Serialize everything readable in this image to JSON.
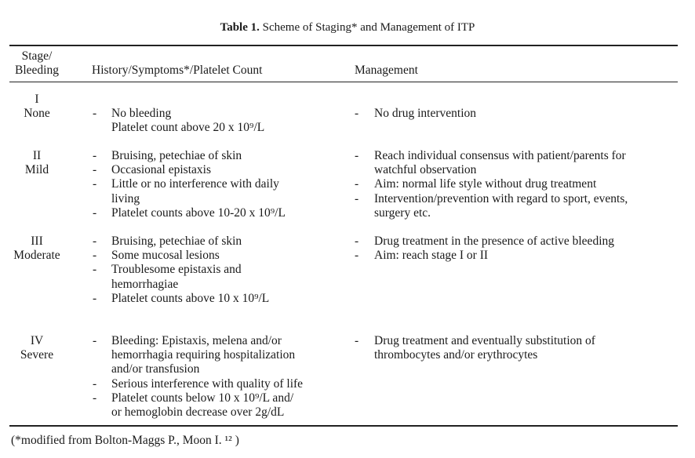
{
  "title": {
    "label": "Table 1.",
    "text": "Scheme of Staging* and Management of ITP"
  },
  "table": {
    "header": [
      [
        "Stage/",
        "Bleeding"
      ],
      [
        "History/Symptoms*/Platelet Count"
      ],
      [
        "Management"
      ]
    ],
    "rows": [
      {
        "stage": [
          "I",
          "None"
        ],
        "history": [
          [
            "No bleeding",
            "Platelet count above 20 x 10⁹/L"
          ]
        ],
        "management": [
          [
            "No drug intervention"
          ]
        ]
      },
      {
        "stage": [
          "II",
          "Mild"
        ],
        "history": [
          [
            "Bruising, petechiae of skin"
          ],
          [
            "Occasional epistaxis"
          ],
          [
            "Little or no interference with daily",
            "living"
          ],
          [
            "Platelet counts above 10-20 x 10⁹/L"
          ]
        ],
        "management": [
          [
            "Reach individual consensus with patient/parents for",
            "watchful observation"
          ],
          [
            "Aim: normal life style without drug treatment"
          ],
          [
            "Intervention/prevention with regard to sport, events,",
            "surgery etc."
          ]
        ]
      },
      {
        "stage": [
          "III",
          "Moderate"
        ],
        "history": [
          [
            "Bruising, petechiae of skin"
          ],
          [
            "Some mucosal lesions"
          ],
          [
            "Troublesome epistaxis and",
            "hemorrhagiae"
          ],
          [
            "Platelet counts above 10 x 10⁹/L"
          ]
        ],
        "management": [
          [
            "Drug treatment in the presence of active bleeding"
          ],
          [
            "Aim: reach stage I or II"
          ]
        ]
      },
      {
        "stage": [
          "IV",
          "Severe"
        ],
        "history": [
          [
            "Bleeding: Epistaxis, melena and/or",
            "hemorrhagia requiring hospitalization",
            "and/or transfusion"
          ],
          [
            "Serious interference with quality of life"
          ],
          [
            "Platelet counts below 10 x 10⁹/L and/",
            "or hemoglobin decrease over 2g/dL"
          ]
        ],
        "management": [
          [
            "Drug treatment and eventually substitution of",
            "thrombocytes and/or erythrocytes"
          ]
        ]
      }
    ]
  },
  "footnote": "(*modified from Bolton-Maggs P., Moon I. ¹² )"
}
